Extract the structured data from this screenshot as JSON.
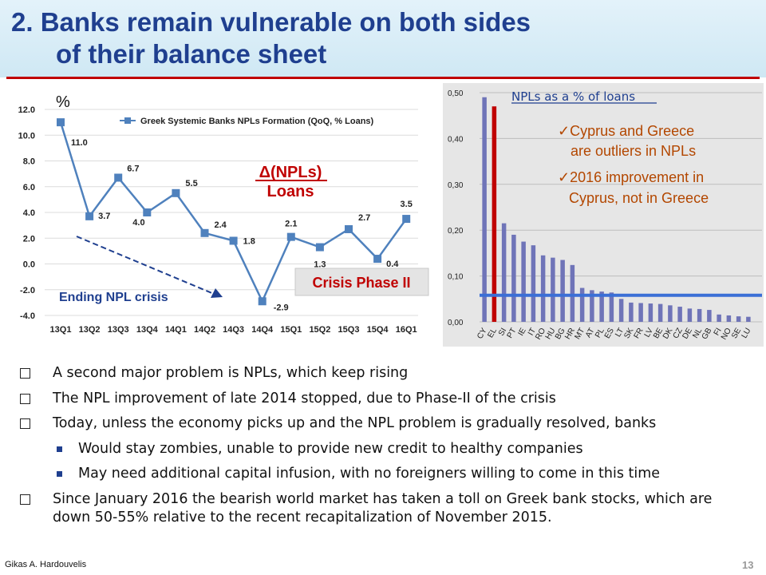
{
  "slide": {
    "title_line1": "2.  Banks remain vulnerable on both sides",
    "title_line2": "of their balance sheet",
    "author": "Gikas A. Hardouvelis",
    "page_number": "13"
  },
  "annotations": {
    "percent_unit": "%",
    "formula_numerator": "Δ(NPLs)",
    "formula_denominator": "Loans",
    "crisis_phase": "Crisis Phase II",
    "ending_crisis": "Ending NPL crisis",
    "right_title": "NPLs as a % of loans",
    "right_note1_line1": "✓Cyprus and Greece",
    "right_note1_line2": "are outliers in NPLs",
    "right_note2_line1": "✓2016 improvement in",
    "right_note2_line2": "Cyprus, not in Greece"
  },
  "chart_data": [
    {
      "type": "line",
      "legend": "Greek Systemic Banks NPLs Formation (QoQ, % Loans)",
      "legend_position": "top",
      "x": [
        "13Q1",
        "13Q2",
        "13Q3",
        "13Q4",
        "14Q1",
        "14Q2",
        "14Q3",
        "14Q4",
        "15Q1",
        "15Q2",
        "15Q3",
        "15Q4",
        "16Q1"
      ],
      "y": [
        11.0,
        3.7,
        6.7,
        4.0,
        5.5,
        2.4,
        1.8,
        -2.9,
        2.1,
        1.3,
        2.7,
        0.4,
        3.5
      ],
      "data_labels": [
        "11.0",
        "3.7",
        "6.7",
        "4.0",
        "5.5",
        "2.4",
        "1.8",
        "-2.9",
        "2.1",
        "1.3",
        "2.7",
        "0.4",
        "3.5"
      ],
      "ylim": [
        -4.0,
        12.0
      ],
      "yticks": [
        "12.0",
        "10.0",
        "8.0",
        "6.0",
        "4.0",
        "2.0",
        "0.0",
        "-2.0",
        "-4.0"
      ],
      "grid": "horizontal",
      "color": "#4f81bd"
    },
    {
      "type": "bar",
      "categories": [
        "CY",
        "EL",
        "SI",
        "PT",
        "IE",
        "IT",
        "RO",
        "HU",
        "BG",
        "HR",
        "MT",
        "AT",
        "PL",
        "ES",
        "LT",
        "SK",
        "FR",
        "LV",
        "BE",
        "DK",
        "CZ",
        "DE",
        "NL",
        "GB",
        "FI",
        "NO",
        "SE",
        "LU"
      ],
      "values": [
        0.49,
        0.47,
        0.215,
        0.19,
        0.175,
        0.167,
        0.145,
        0.14,
        0.135,
        0.124,
        0.074,
        0.069,
        0.066,
        0.064,
        0.05,
        0.042,
        0.041,
        0.04,
        0.039,
        0.036,
        0.033,
        0.029,
        0.028,
        0.026,
        0.016,
        0.014,
        0.012,
        0.011
      ],
      "highlight": {
        "EL": "#c00000"
      },
      "bar_color": "#6f74b8",
      "reference_line": 0.058,
      "reference_color": "#3b6fd6",
      "ylim": [
        0,
        0.5
      ],
      "yticks": [
        "0,50",
        "0,40",
        "0,30",
        "0,20",
        "0,10",
        "0,00"
      ],
      "grid": "horizontal"
    }
  ],
  "bullets": [
    {
      "level": 1,
      "text": "A second major problem is NPLs, which keep rising"
    },
    {
      "level": 1,
      "text": "The  NPL improvement of late 2014 stopped, due to Phase-II of the crisis"
    },
    {
      "level": 1,
      "text": "Today, unless the economy picks up and the NPL problem is gradually resolved, banks"
    },
    {
      "level": 2,
      "text": "Would stay zombies, unable to provide new credit to healthy companies"
    },
    {
      "level": 2,
      "text": "May need additional capital infusion, with no foreigners willing to come in this time"
    },
    {
      "level": 1,
      "text": "Since January 2016 the bearish world market has taken a toll on Greek bank stocks, which are down 50-55% relative to the recent recapitalization of  November 2015."
    }
  ]
}
